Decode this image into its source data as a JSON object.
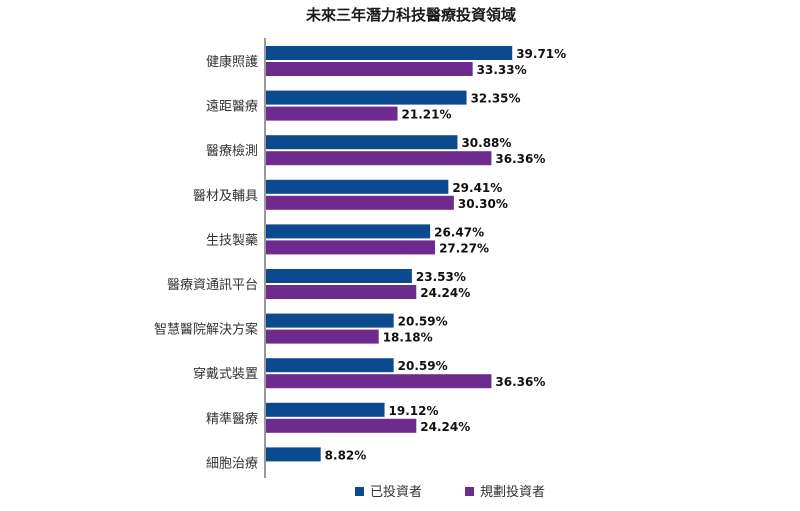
{
  "chart_data": {
    "type": "bar",
    "orientation": "horizontal",
    "title": "未來三年潛力科技醫療投資領域",
    "categories": [
      "健康照護",
      "遠距醫療",
      "醫療檢測",
      "醫材及輔具",
      "生技製藥",
      "醫療資通訊平台",
      "智慧醫院解決方案",
      "穿戴式裝置",
      "精準醫療",
      "細胞治療"
    ],
    "series": [
      {
        "name": "已投資者",
        "color": "#0b4a8f",
        "values": [
          39.71,
          32.35,
          30.88,
          29.41,
          26.47,
          23.53,
          20.59,
          20.59,
          19.12,
          8.82
        ],
        "labels": [
          "39.71%",
          "32.35%",
          "30.88%",
          "29.41%",
          "26.47%",
          "23.53%",
          "20.59%",
          "20.59%",
          "19.12%",
          "8.82%"
        ]
      },
      {
        "name": "規劃投資者",
        "color": "#6e2b8e",
        "values": [
          33.33,
          21.21,
          36.36,
          30.3,
          27.27,
          24.24,
          18.18,
          36.36,
          24.24,
          null
        ],
        "labels": [
          "33.33%",
          "21.21%",
          "36.36%",
          "30.30%",
          "27.27%",
          "24.24%",
          "18.18%",
          "36.36%",
          "24.24%",
          null
        ]
      }
    ],
    "xlim": [
      0,
      100
    ],
    "grid": false,
    "legend_position": "bottom"
  }
}
